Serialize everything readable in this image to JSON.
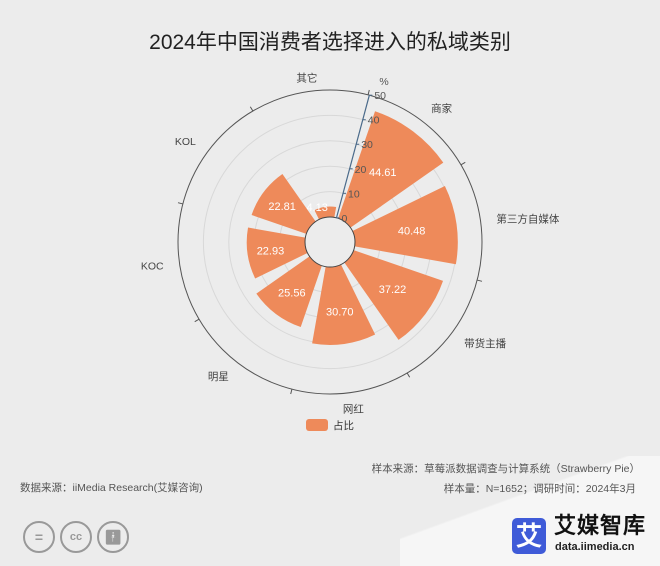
{
  "chart_data": {
    "type": "polar-bar",
    "title": "2024年中国消费者选择进入的私域类别",
    "radial_unit": "%",
    "rlim": [
      0,
      50
    ],
    "radial_ticks": [
      "0",
      "10",
      "20",
      "30",
      "40",
      "50"
    ],
    "categories": [
      "其它",
      "商家",
      "第三方自媒体",
      "带货主播",
      "网红",
      "明星",
      "KOC",
      "KOL"
    ],
    "series": [
      {
        "name": "占比",
        "values": [
          4.13,
          44.61,
          40.48,
          37.22,
          30.7,
          25.56,
          22.93,
          22.81
        ],
        "labels": [
          "4.13",
          "44.61",
          "40.48",
          "37.22",
          "30.70",
          "25.56",
          "22.93",
          "22.81"
        ],
        "color": "#ee8a5a"
      }
    ],
    "legend_position": "bottom",
    "grid": true
  },
  "footer": {
    "data_source": "数据来源：iiMedia Research(艾媒咨询)",
    "sample_source": "样本来源：草莓派数据调查与计算系统（Strawberry Pie）",
    "sample_info": "样本量：N=1652；调研时间：2024年3月"
  },
  "logo": {
    "mark": "艾",
    "name": "艾媒智库",
    "url": "data.iimedia.cn",
    "accent": "#3f5bd8"
  },
  "license_icons": [
    "equals-icon",
    "cc-icon",
    "person-icon"
  ]
}
